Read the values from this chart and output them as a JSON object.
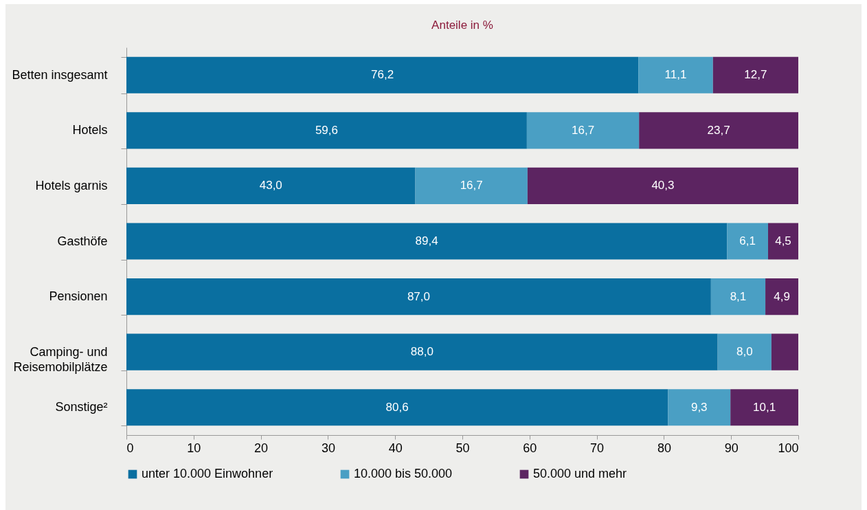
{
  "chart_data": {
    "type": "bar",
    "orientation": "horizontal",
    "stacked": true,
    "title": "Anteile in %",
    "categories": [
      "Betten insgesamt",
      "Hotels",
      "Hotels garnis",
      "Gasthöfe",
      "Pensionen",
      "Camping- und Reisemobilplätze",
      "Sonstige²"
    ],
    "series": [
      {
        "name": "unter 10.000 Einwohner",
        "color": "#0a6fa0",
        "values": [
          76.2,
          59.6,
          43.0,
          89.4,
          87.0,
          88.0,
          80.6
        ],
        "value_labels": [
          "76,2",
          "59,6",
          "43,0",
          "89,4",
          "87,0",
          "88,0",
          "80,6"
        ]
      },
      {
        "name": "10.000 bis 50.000",
        "color": "#4a9fc4",
        "values": [
          11.1,
          16.7,
          16.7,
          6.1,
          8.1,
          8.0,
          9.3
        ],
        "value_labels": [
          "11,1",
          "16,7",
          "16,7",
          "6,1",
          "8,1",
          "8,0",
          "9,3"
        ]
      },
      {
        "name": "50.000 und mehr",
        "color": "#5c2461",
        "values": [
          12.7,
          23.7,
          40.3,
          4.5,
          4.9,
          4.0,
          10.1
        ],
        "value_labels": [
          "12,7",
          "23,7",
          "40,3",
          "4,5",
          "4,9",
          null,
          "10,1"
        ]
      }
    ],
    "xlim": [
      0,
      100
    ],
    "xticks": [
      0,
      10,
      20,
      30,
      40,
      50,
      60,
      70,
      80,
      90,
      100
    ],
    "grid": false,
    "legend": "bottom"
  }
}
